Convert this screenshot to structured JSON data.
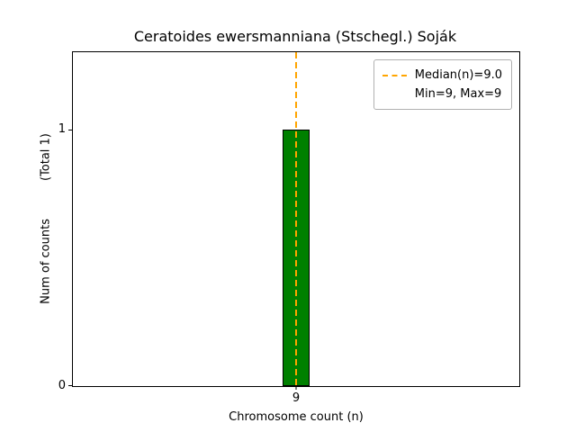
{
  "chart_data": {
    "type": "bar",
    "title": "Ceratoides ewersmanniana (Stschegl.) Soják",
    "xlabel": "Chromosome count (n)",
    "ylabel": "Num of counts",
    "total_annotation": "(Total 1)",
    "categories": [
      "9"
    ],
    "values": [
      1
    ],
    "ylim": [
      0,
      1.3
    ],
    "yticks": [
      0,
      1
    ],
    "ytick_labels": [
      "0",
      "1"
    ],
    "grid": false,
    "legend_position": "upper-right",
    "bar": {
      "fill_color": "#008000",
      "edge_color": "#000000"
    },
    "median_line": {
      "value": 9.0,
      "color": "#ffa500",
      "style": "dashed"
    },
    "legend": {
      "entries": [
        {
          "label": "Median(n)=9.0",
          "handle": "dashed-line",
          "color": "#ffa500"
        },
        {
          "label": "Min=9, Max=9",
          "handle": "none"
        }
      ]
    }
  }
}
